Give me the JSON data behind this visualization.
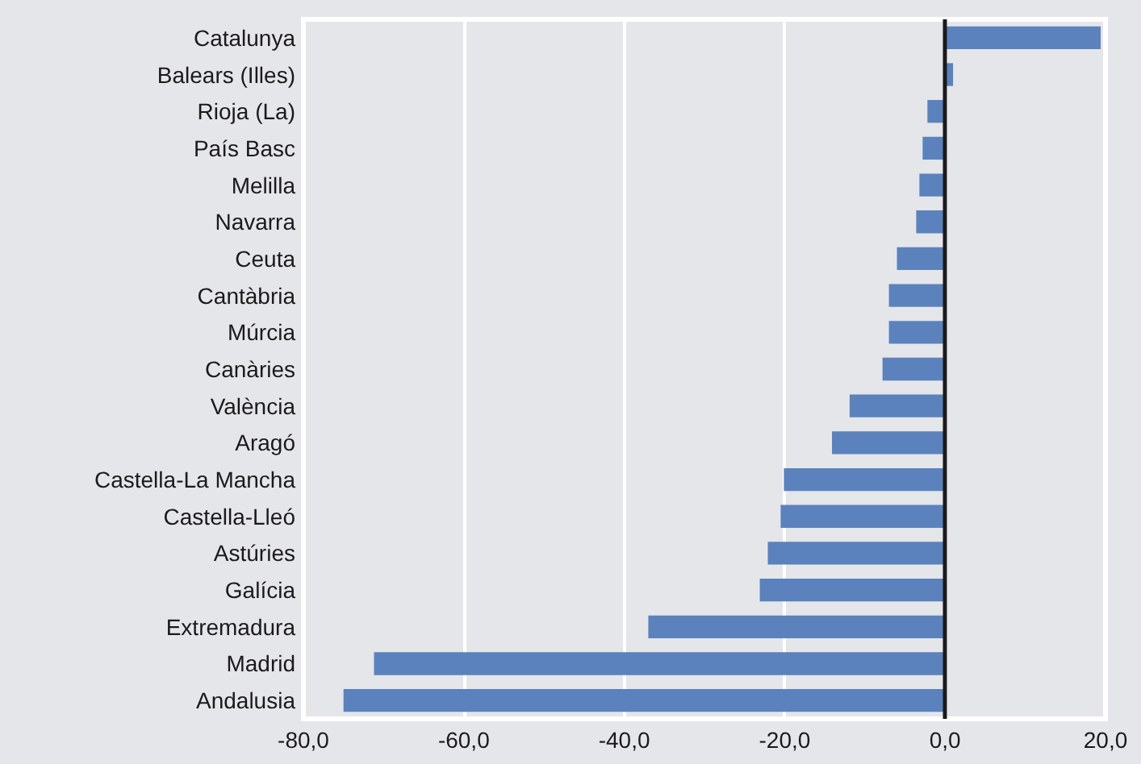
{
  "chart_data": {
    "type": "bar",
    "orientation": "horizontal",
    "categories": [
      "Catalunya",
      "Balears (Illes)",
      "Rioja (La)",
      "País Basc",
      "Melilla",
      "Navarra",
      "Ceuta",
      "Cantàbria",
      "Múrcia",
      "Canàries",
      "València",
      "Aragó",
      "Castella-La Mancha",
      "Castella-Lleó",
      "Astúries",
      "Galícia",
      "Extremadura",
      "Madrid",
      "Andalusia"
    ],
    "values": [
      19.4,
      1.0,
      -2.2,
      -2.8,
      -3.2,
      -3.6,
      -6.0,
      -7.0,
      -7.0,
      -7.8,
      -11.9,
      -14.1,
      -20.1,
      -20.5,
      -22.1,
      -23.1,
      -37.0,
      -71.2,
      -75.0
    ],
    "color": "#5b82bd",
    "xlim": [
      -80,
      20
    ],
    "xticks": [
      {
        "value": -80,
        "label": "-80,0"
      },
      {
        "value": -60,
        "label": "-60,0"
      },
      {
        "value": -40,
        "label": "-40,0"
      },
      {
        "value": -20,
        "label": "-20,0"
      },
      {
        "value": 0,
        "label": "0,0"
      },
      {
        "value": 20,
        "label": "20,0"
      }
    ],
    "ref_lines": [
      {
        "axis": "x",
        "value": 0,
        "color": "#1a1a1a"
      }
    ],
    "grid": "x"
  }
}
